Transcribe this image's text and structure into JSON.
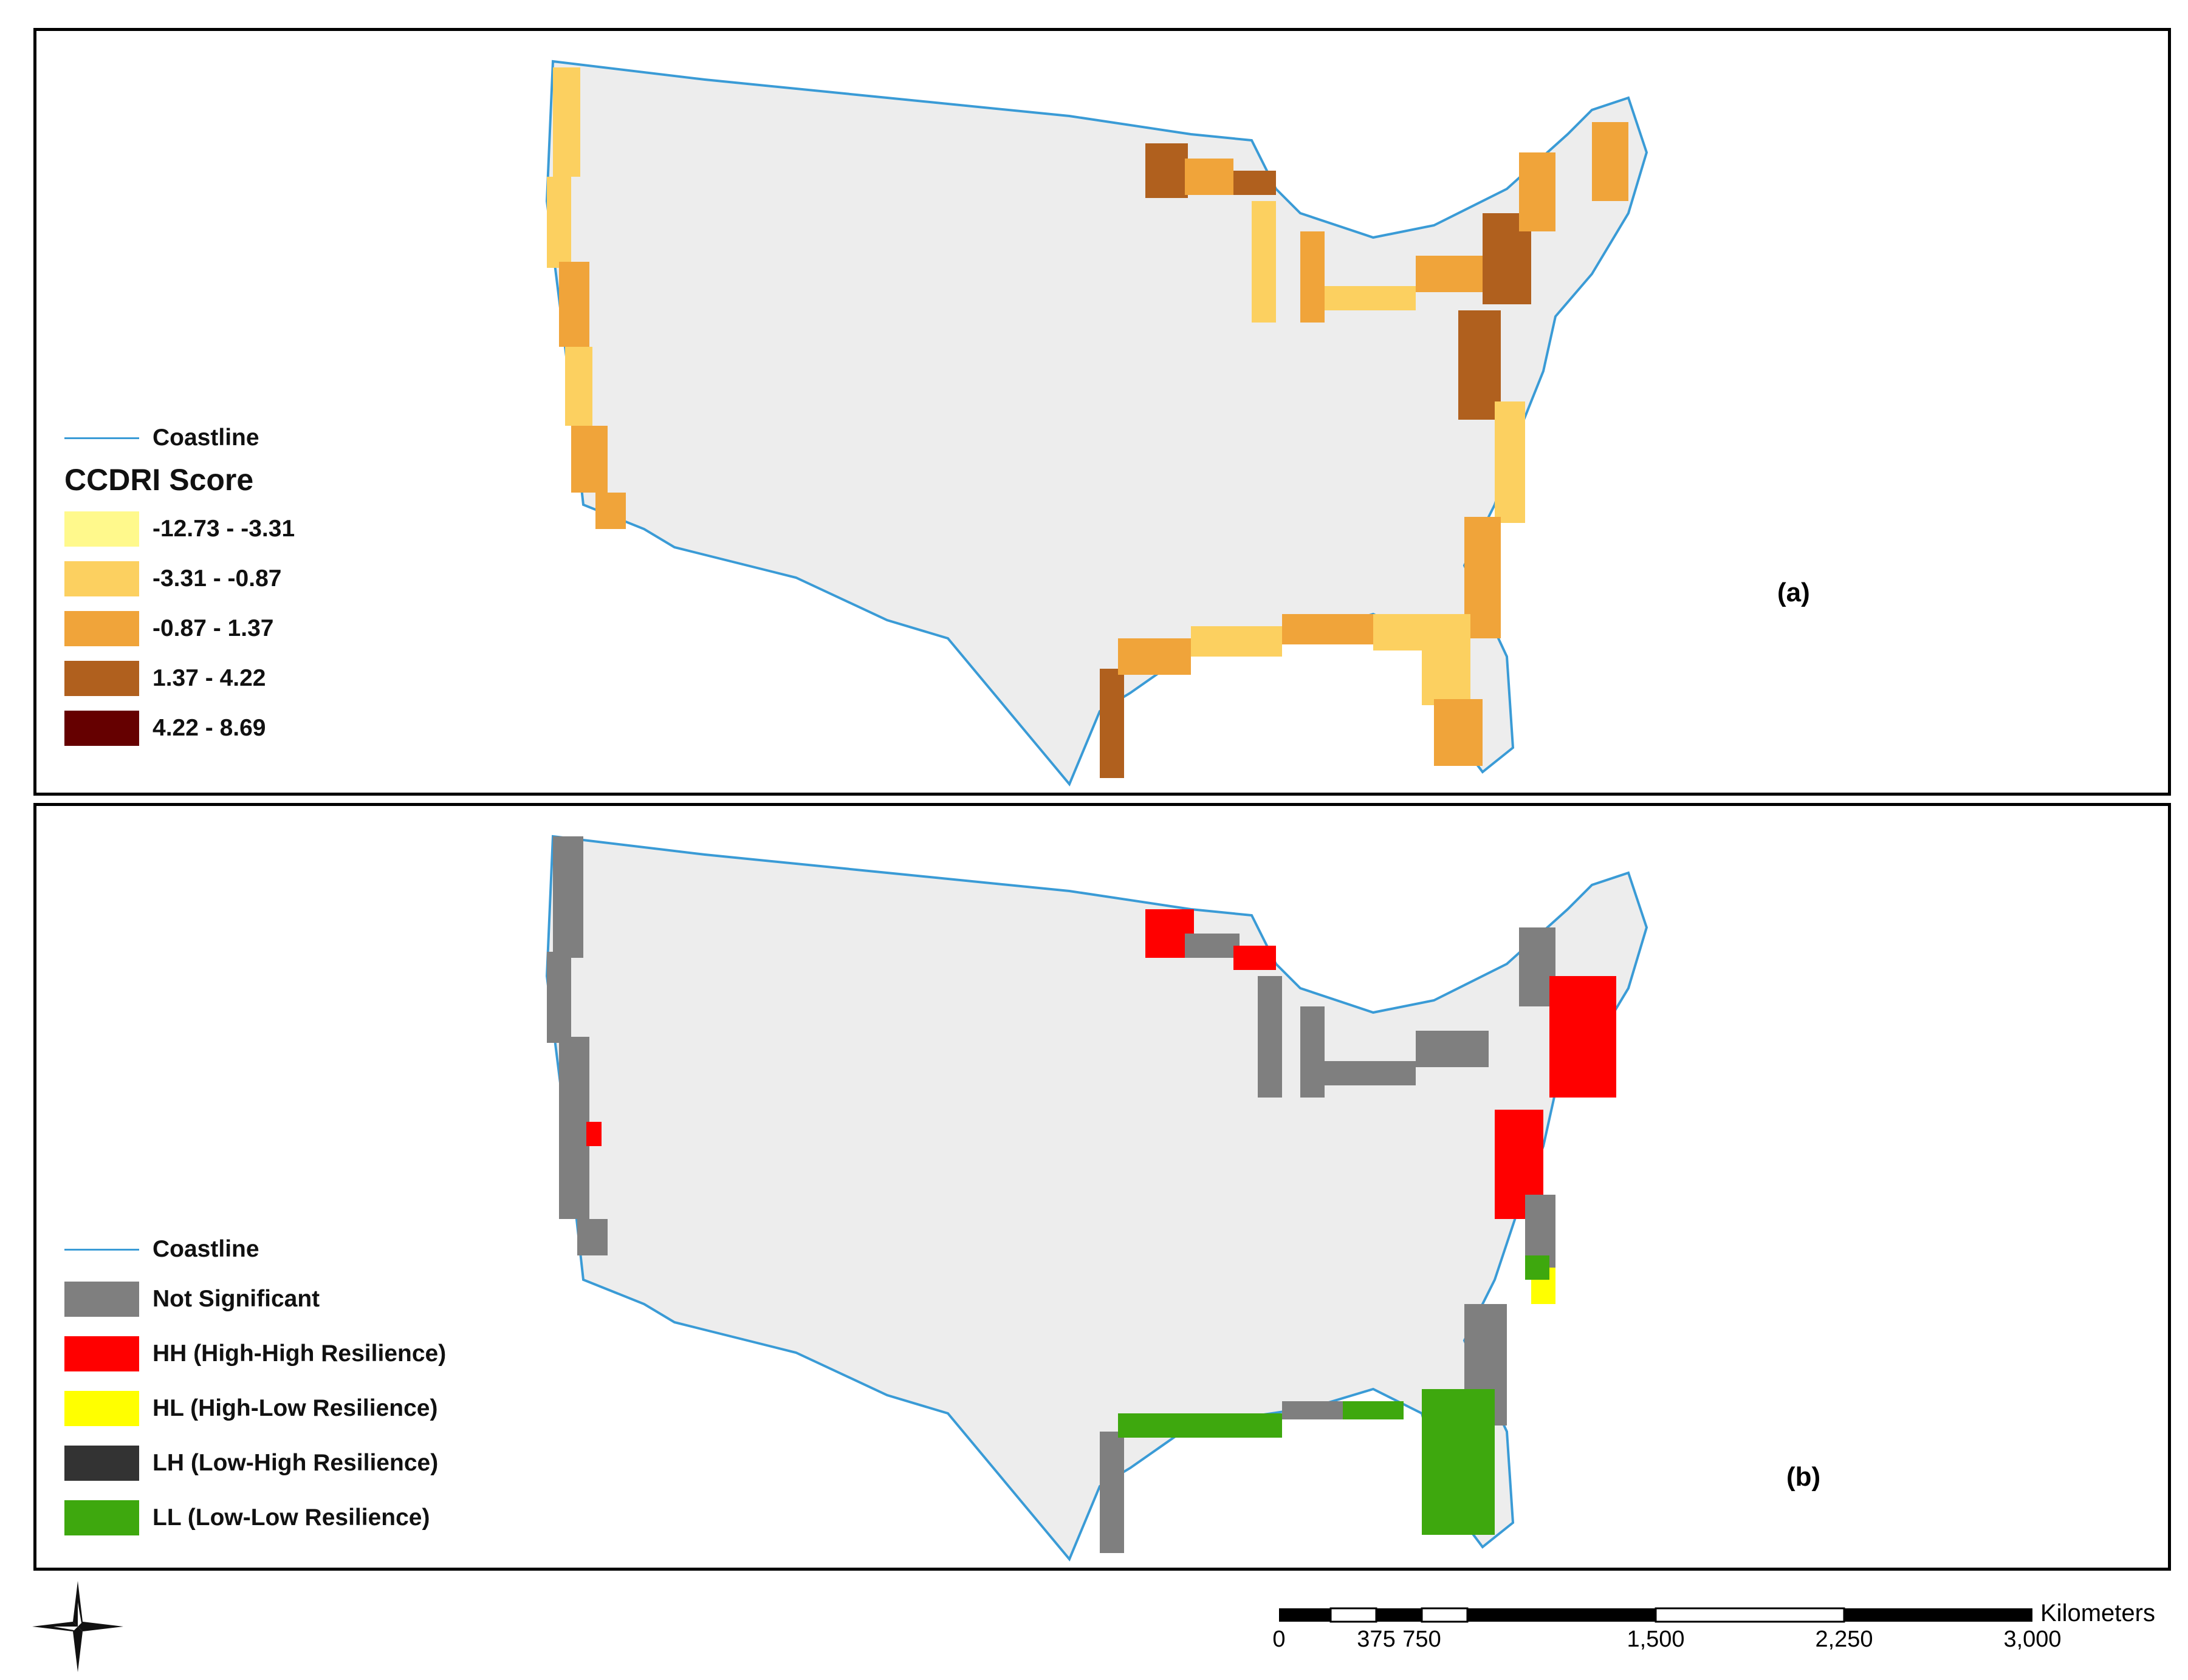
{
  "panel_a": {
    "label": "(a)",
    "legend": {
      "coastline_label": "Coastline",
      "title": "CCDRI Score",
      "classes": [
        {
          "label": "-12.73 - -3.31",
          "color": "#fff98c"
        },
        {
          "label": "-3.31 - -0.87",
          "color": "#fcd060"
        },
        {
          "label": "-0.87 - 1.37",
          "color": "#f0a43a"
        },
        {
          "label": "1.37 - 4.22",
          "color": "#b0601e"
        },
        {
          "label": "4.22 - 8.69",
          "color": "#650000"
        }
      ]
    }
  },
  "panel_b": {
    "label": "(b)",
    "legend": {
      "coastline_label": "Coastline",
      "classes": [
        {
          "label": "Not Significant",
          "color": "#7f7f7f"
        },
        {
          "label": "HH (High-High Resilience)",
          "color": "#ff0000"
        },
        {
          "label": "HL (High-Low Resilience)",
          "color": "#ffff00"
        },
        {
          "label": "LH (Low-High Resilience)",
          "color": "#333333"
        },
        {
          "label": "LL (Low-Low Resilience)",
          "color": "#3ea80e"
        }
      ]
    }
  },
  "colors": {
    "land": "#ededed",
    "coastline": "#3a9bd6",
    "state_border": "#d8d8d8"
  },
  "scale_bar": {
    "unit": "Kilometers",
    "ticks": [
      "0",
      "375",
      "750",
      "1,500",
      "2,250",
      "3,000"
    ]
  },
  "north_arrow": {
    "icon": "compass-rose-icon"
  }
}
